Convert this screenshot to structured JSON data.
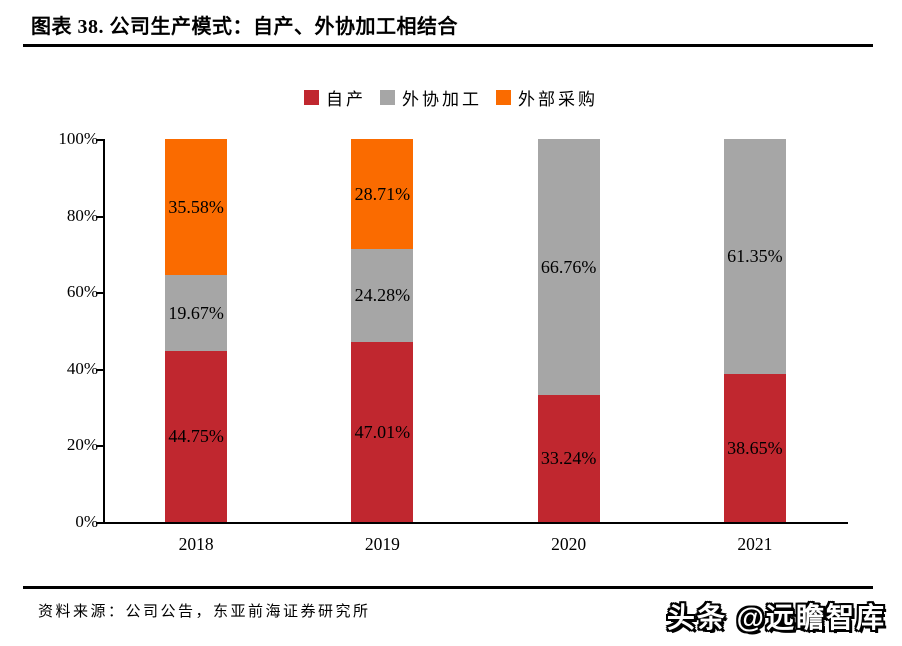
{
  "header": {
    "title": "图表 38. 公司生产模式：自产、外协加工相结合"
  },
  "chart_data": {
    "type": "bar",
    "stacked": true,
    "title": "图表 38. 公司生产模式：自产、外协加工相结合",
    "categories": [
      "2018",
      "2019",
      "2020",
      "2021"
    ],
    "series": [
      {
        "name": "自产",
        "color": "#C0272F",
        "values": [
          44.75,
          47.01,
          33.24,
          38.65
        ]
      },
      {
        "name": "外协加工",
        "color": "#A6A6A6",
        "values": [
          19.67,
          24.28,
          66.76,
          61.35
        ]
      },
      {
        "name": "外部采购",
        "color": "#FA6B00",
        "values": [
          35.58,
          28.71,
          0,
          0
        ]
      }
    ],
    "y_ticks": [
      0,
      20,
      40,
      60,
      80,
      100
    ],
    "y_tick_labels": [
      "0%",
      "20%",
      "40%",
      "60%",
      "80%",
      "100%"
    ],
    "ylim": [
      0,
      100
    ],
    "value_label_format": "percent_2dp",
    "legend_position": "top",
    "grid": false
  },
  "footer": {
    "source": "资料来源：公司公告，东亚前海证券研究所",
    "watermark": "头条 @远瞻智库"
  },
  "colors": {
    "axis": "#000000",
    "background": "#FFFFFF",
    "text": "#000000"
  }
}
